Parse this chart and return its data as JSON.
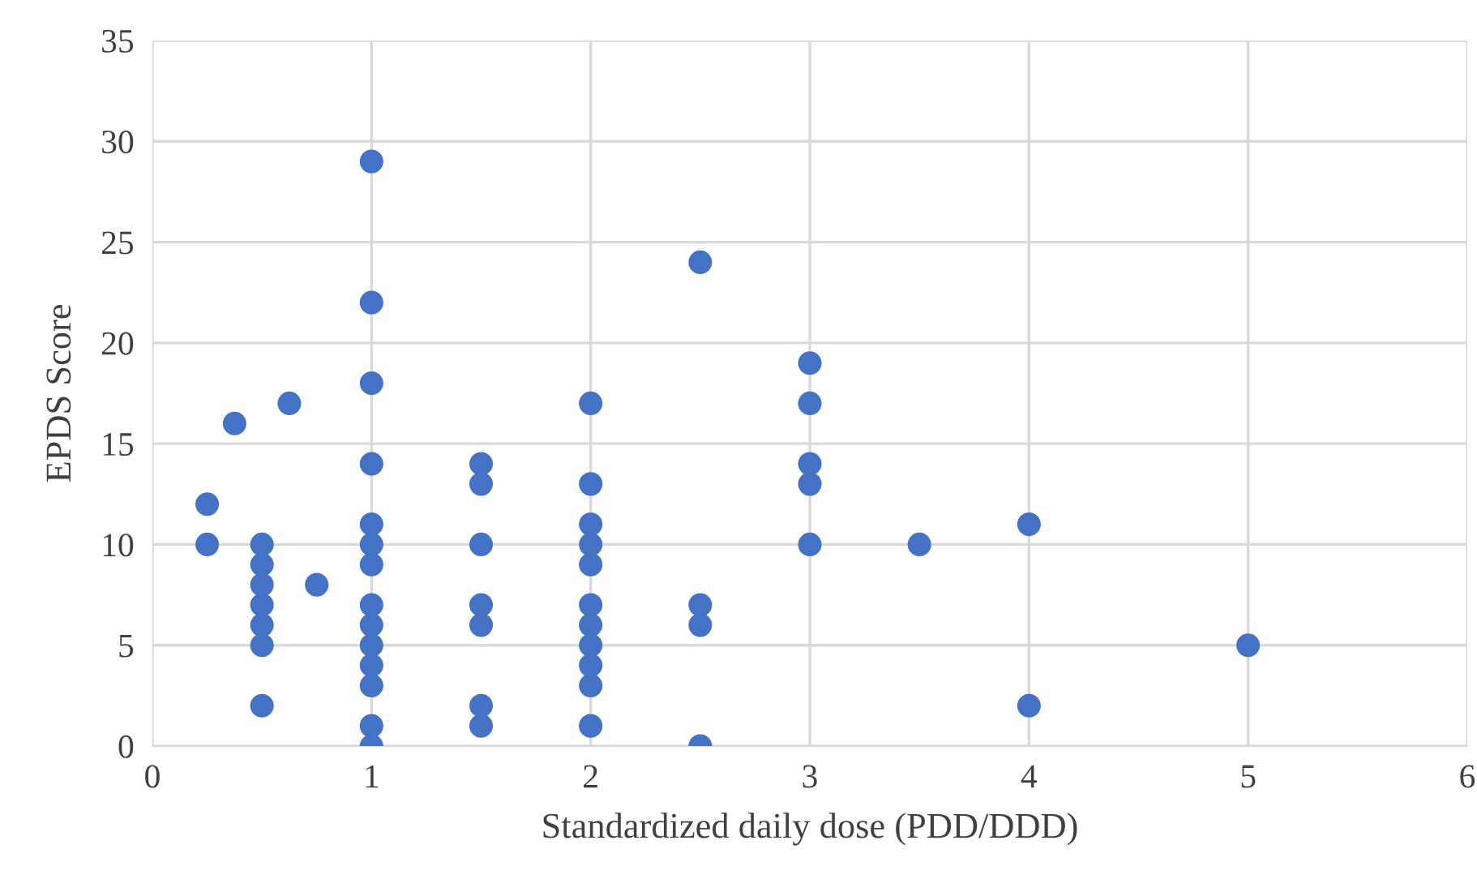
{
  "chart_data": {
    "type": "scatter",
    "xlabel": "Standardized daily dose (PDD/DDD)",
    "ylabel": "EPDS Score",
    "x": [
      0.25,
      0.25,
      0.375,
      0.625,
      0.75,
      0.5,
      0.5,
      0.5,
      0.5,
      0.5,
      0.5,
      0.5,
      1,
      1,
      1,
      1,
      1,
      1,
      1,
      1,
      1,
      1,
      1,
      1,
      1,
      1,
      1.5,
      1.5,
      1.5,
      1.5,
      1.5,
      1.5,
      1.5,
      2,
      2,
      2,
      2,
      2,
      2,
      2,
      2,
      2,
      2,
      2,
      2.5,
      2.5,
      2.5,
      2.5,
      3,
      3,
      3,
      3,
      3,
      3.5,
      4,
      4,
      5
    ],
    "values": [
      12,
      10,
      16,
      17,
      8,
      10,
      9,
      8,
      7,
      6,
      5,
      2,
      29,
      22,
      18,
      14,
      11,
      10,
      9,
      7,
      6,
      5,
      4,
      3,
      1,
      0,
      14,
      13,
      10,
      7,
      6,
      2,
      1,
      17,
      13,
      11,
      10,
      9,
      7,
      6,
      5,
      4,
      3,
      1,
      24,
      7,
      6,
      0,
      19,
      17,
      14,
      13,
      10,
      10,
      11,
      2,
      5
    ],
    "color": "#4472c4",
    "marker": "circle",
    "xlim": [
      0,
      6
    ],
    "xticks": [
      0,
      1,
      2,
      3,
      4,
      5,
      6
    ],
    "ylim": [
      0,
      35
    ],
    "yticks": [
      0,
      5,
      10,
      15,
      20,
      25,
      30,
      35
    ],
    "grid": true
  }
}
